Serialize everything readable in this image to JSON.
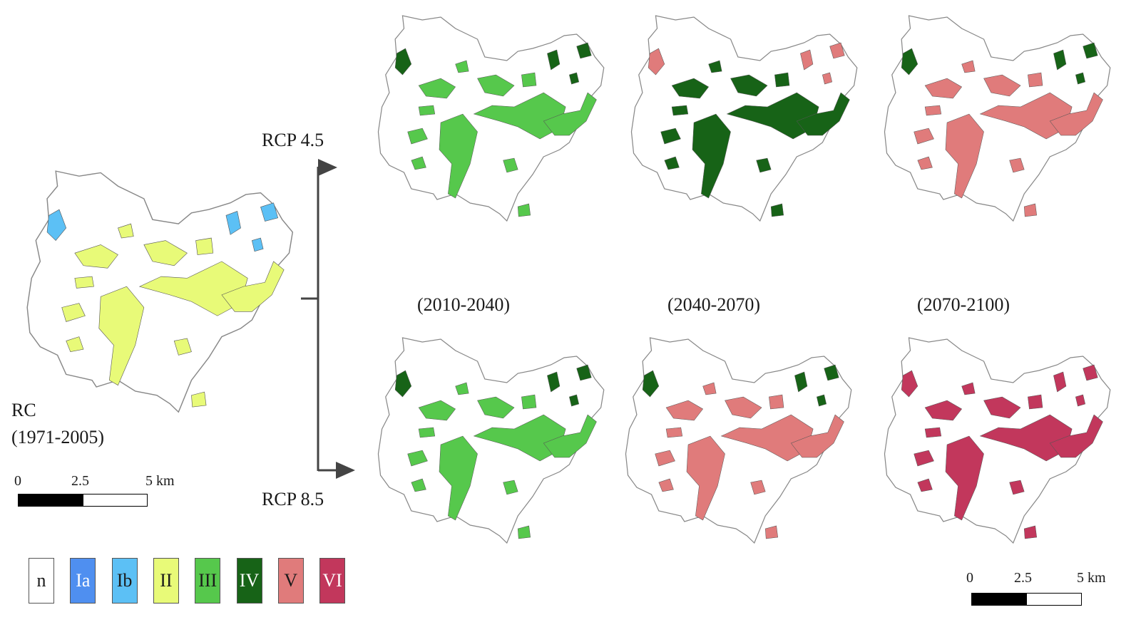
{
  "labels": {
    "rcp45": "RCP 4.5",
    "rcp85": "RCP 8.5",
    "rc_line1": "RC",
    "rc_line2": "(1971-2005)",
    "period1": "(2010-2040)",
    "period2": "(2040-2070)",
    "period3": "(2070-2100)"
  },
  "scalebar": {
    "t0": "0",
    "t1": "2.5",
    "t2": "5 km"
  },
  "legend": [
    {
      "code": "n",
      "color": "#ffffff",
      "text_color": "#1a1a1a"
    },
    {
      "code": "Ia",
      "color": "#4f8ff0",
      "text_color": "#ffffff"
    },
    {
      "code": "Ib",
      "color": "#5cc0f5",
      "text_color": "#1a1a1a"
    },
    {
      "code": "II",
      "color": "#e8fa78",
      "text_color": "#1a1a1a"
    },
    {
      "code": "III",
      "color": "#56c84c",
      "text_color": "#1a1a1a"
    },
    {
      "code": "IV",
      "color": "#176317",
      "text_color": "#ffffff"
    },
    {
      "code": "V",
      "color": "#e07b7b",
      "text_color": "#1a1a1a"
    },
    {
      "code": "VI",
      "color": "#c2375c",
      "text_color": "#ffffff"
    }
  ],
  "maps": [
    {
      "id": "rc",
      "dominant": "II",
      "secondary": "Ib"
    },
    {
      "id": "rcp45-p1",
      "dominant": "III",
      "secondary": "IV"
    },
    {
      "id": "rcp45-p2",
      "dominant": "IV",
      "secondary": "V"
    },
    {
      "id": "rcp45-p3",
      "dominant": "V",
      "secondary": "IV"
    },
    {
      "id": "rcp85-p1",
      "dominant": "III",
      "secondary": "IV"
    },
    {
      "id": "rcp85-p2",
      "dominant": "V",
      "secondary": "IV"
    },
    {
      "id": "rcp85-p3",
      "dominant": "VI",
      "secondary": "VI"
    }
  ]
}
